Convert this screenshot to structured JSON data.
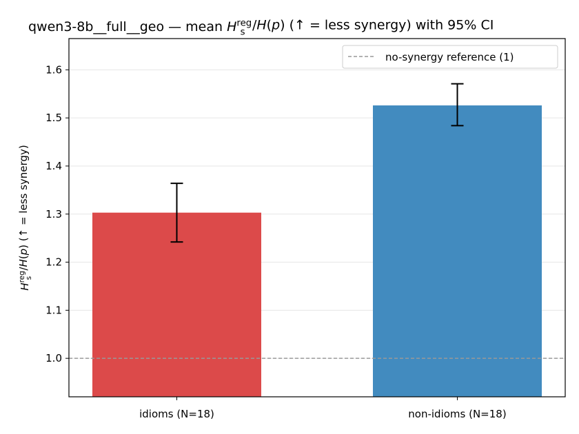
{
  "chart_data": {
    "type": "bar",
    "title": "qwen3-8b__full__geo — mean H_s^reg/H(p)  (↑ = less synergy) with 95% CI",
    "title_parts": {
      "prefix": "qwen3-8b__full__geo — mean ",
      "h": "H",
      "sub": "s",
      "sup": "reg",
      "ratio": "/H(p)",
      "suffix": "  (↑ = less synergy) with 95% CI"
    },
    "ylabel": "H_s^reg/H(p)  (↑ = less synergy)",
    "ylabel_parts": {
      "h": "H",
      "sub": "s",
      "sup": "reg",
      "ratio": "/H(p)",
      "suffix": "  (↑ = less synergy)"
    },
    "xlabel": "",
    "categories": [
      "idioms (N=18)",
      "non-idioms (N=18)"
    ],
    "values": [
      1.303,
      1.526
    ],
    "ci_lower": [
      1.242,
      1.484
    ],
    "ci_upper": [
      1.364,
      1.571
    ],
    "colors": [
      "#dc4a4a",
      "#428bbf"
    ],
    "ylim": [
      0.92,
      1.665
    ],
    "yticks": [
      1.0,
      1.1,
      1.2,
      1.3,
      1.4,
      1.5,
      1.6
    ],
    "ytick_labels": [
      "1.0",
      "1.1",
      "1.2",
      "1.3",
      "1.4",
      "1.5",
      "1.6"
    ],
    "grid": "horizontal",
    "reference_line": {
      "value": 1.0,
      "label": "no-synergy reference (1)",
      "color": "#999999"
    },
    "legend": {
      "position": "top-right",
      "entries": [
        "no-synergy reference (1)"
      ]
    }
  }
}
